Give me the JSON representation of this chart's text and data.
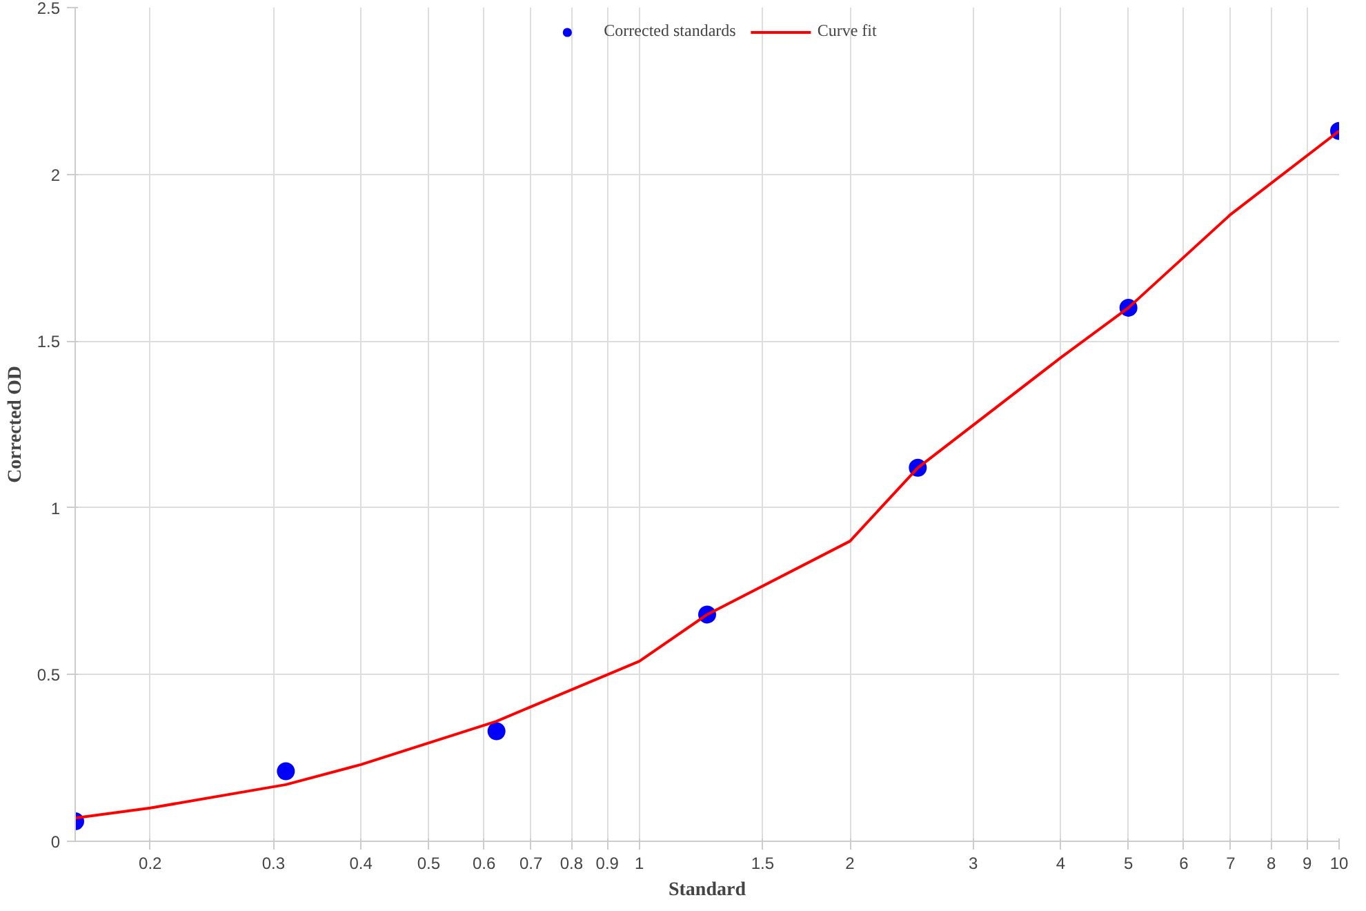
{
  "chart_data": {
    "type": "scatter",
    "xlabel": "Standard",
    "ylabel": "Corrected OD",
    "log": "x",
    "grid": true,
    "legend": "top",
    "xlim": [
      0.15625,
      10
    ],
    "ylim": [
      0,
      2.5
    ],
    "xticks": [
      0.2,
      0.3,
      0.4,
      0.5,
      0.6,
      0.7,
      0.8,
      0.9,
      1,
      1.5,
      2,
      3,
      4,
      5,
      6,
      7,
      8,
      9,
      10
    ],
    "yticks": [
      0,
      0.5,
      1,
      1.5,
      2,
      2.5
    ],
    "series": [
      {
        "name": "Corrected standards",
        "marker": "circle",
        "color": "#0000ff",
        "x": [
          0.15625,
          0.3125,
          0.625,
          1.25,
          2.5,
          5,
          10
        ],
        "values": [
          0.06,
          0.21,
          0.33,
          0.68,
          1.12,
          1.6,
          2.13
        ]
      },
      {
        "name": "Curve fit",
        "type": "line",
        "marker": "none",
        "line_style": "solid",
        "color": "#ff0000",
        "x": [
          0.15625,
          0.2,
          0.3125,
          0.4,
          0.625,
          1,
          1.25,
          2,
          2.5,
          4,
          5,
          7,
          10
        ],
        "values": [
          0.07,
          0.1,
          0.17,
          0.23,
          0.36,
          0.54,
          0.68,
          0.9,
          1.12,
          1.45,
          1.6,
          1.88,
          2.13
        ]
      }
    ]
  }
}
